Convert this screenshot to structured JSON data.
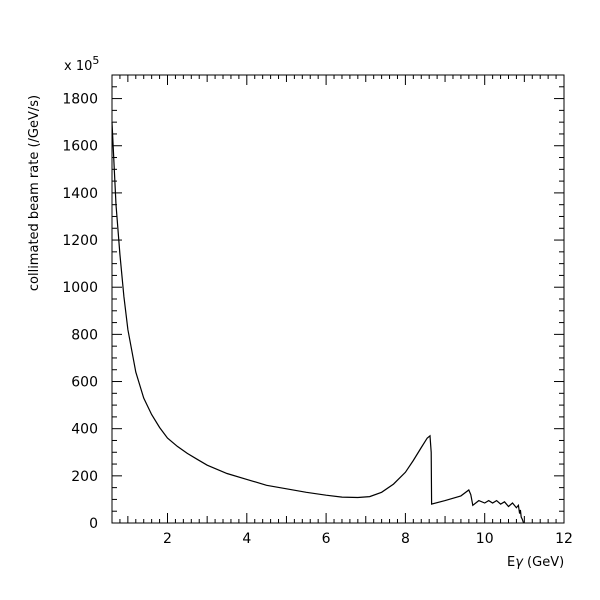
{
  "chart_data": {
    "type": "line",
    "title": "",
    "xlabel_prefix": "E",
    "xlabel_symbol": "γ",
    "xlabel_suffix": " (GeV)",
    "ylabel": "collimated beam rate (/GeV/s)",
    "y_multiplier_text": "x 10",
    "y_multiplier_exp": "5",
    "xlim": [
      0.6,
      12
    ],
    "ylim": [
      0,
      1900
    ],
    "x_ticks": [
      2,
      4,
      6,
      8,
      10,
      12
    ],
    "y_ticks": [
      0,
      200,
      400,
      600,
      800,
      1000,
      1200,
      1400,
      1600,
      1800
    ],
    "grid": false,
    "series": [
      {
        "x": [
          0.6,
          0.7,
          0.8,
          0.9,
          1.0,
          1.2,
          1.4,
          1.6,
          1.8,
          2.0,
          2.25,
          2.5,
          2.75,
          3.0,
          3.5,
          4.0,
          4.5,
          5.0,
          5.5,
          6.0,
          6.4,
          6.8,
          7.1,
          7.4,
          7.7,
          8.0,
          8.2,
          8.4,
          8.55,
          8.62,
          8.65,
          8.66,
          9.0,
          9.4,
          9.6,
          9.65,
          9.7,
          9.85,
          10.0,
          10.1,
          10.2,
          10.3,
          10.4,
          10.5,
          10.6,
          10.7,
          10.8,
          10.85,
          10.88,
          10.9,
          10.92,
          10.95,
          10.98
        ],
        "y": [
          1700,
          1350,
          1140,
          960,
          820,
          640,
          530,
          460,
          405,
          360,
          325,
          295,
          270,
          245,
          210,
          185,
          160,
          145,
          130,
          118,
          110,
          108,
          112,
          130,
          165,
          215,
          265,
          320,
          360,
          370,
          300,
          80,
          95,
          115,
          140,
          120,
          75,
          95,
          85,
          95,
          85,
          95,
          80,
          90,
          70,
          85,
          65,
          75,
          40,
          55,
          25,
          15,
          0
        ]
      }
    ]
  }
}
